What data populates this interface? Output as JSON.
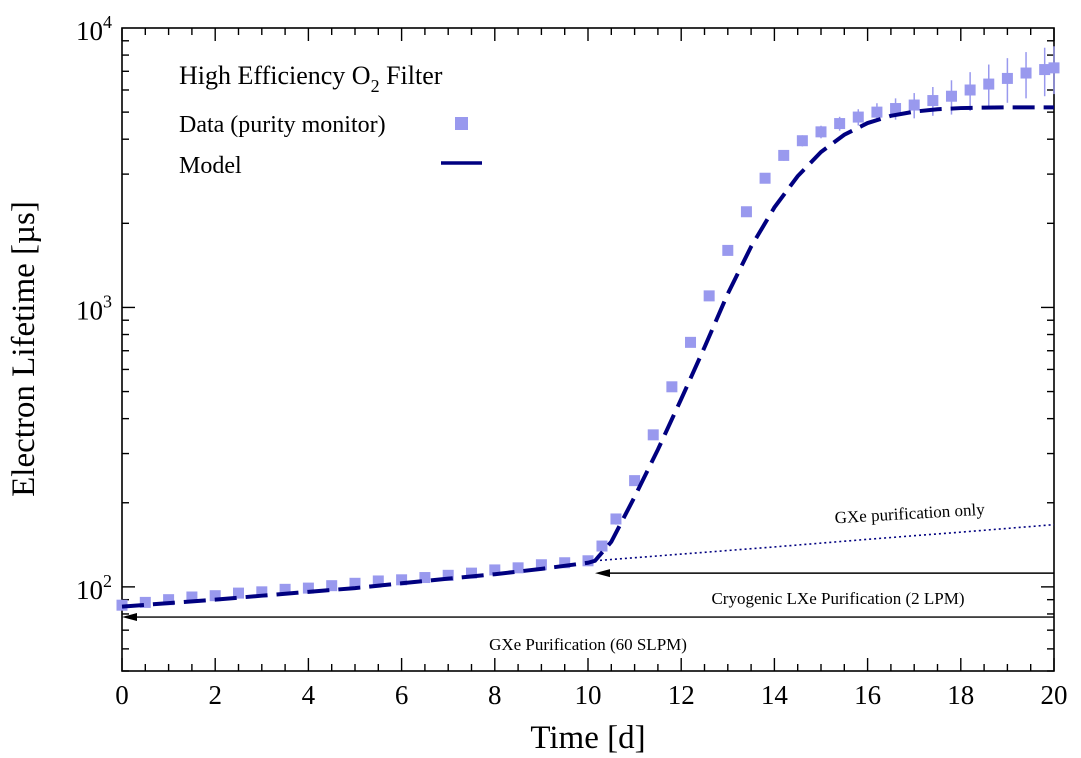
{
  "chart_data": {
    "type": "scatter",
    "title": "",
    "xlabel": "Time [d]",
    "ylabel": "Electron Lifetime [µs]",
    "xlim": [
      0,
      20
    ],
    "ylim": [
      50,
      10000
    ],
    "yscale": "log",
    "x_ticks": [
      0,
      2,
      4,
      6,
      8,
      10,
      12,
      14,
      16,
      18,
      20
    ],
    "x_tick_labels": [
      "0",
      "2",
      "4",
      "6",
      "8",
      "10",
      "12",
      "14",
      "16",
      "18",
      "20"
    ],
    "y_ticks": [
      100,
      1000,
      10000
    ],
    "y_tick_labels": [
      {
        "base": "10",
        "exp": "2"
      },
      {
        "base": "10",
        "exp": "3"
      },
      {
        "base": "10",
        "exp": "4"
      }
    ],
    "legend": {
      "placement": "top-left",
      "title_main": "High Efficiency O",
      "title_sub": "2",
      "title_tail": " Filter",
      "entries": [
        {
          "label": "Data (purity monitor)",
          "style": "square",
          "color": "#9999ee"
        },
        {
          "label": "Model",
          "style": "dashed-line",
          "color": "#000080"
        }
      ]
    },
    "series": [
      {
        "name": "Data (purity monitor)",
        "style": "square-markers-with-errorbars",
        "color": "#9999ee",
        "x": [
          0.0,
          0.5,
          1.0,
          1.5,
          2.0,
          2.5,
          3.0,
          3.5,
          4.0,
          4.5,
          5.0,
          5.5,
          6.0,
          6.5,
          7.0,
          7.5,
          8.0,
          8.5,
          9.0,
          9.5,
          10.0,
          10.3,
          10.6,
          11.0,
          11.4,
          11.8,
          12.2,
          12.6,
          13.0,
          13.4,
          13.8,
          14.2,
          14.6,
          15.0,
          15.4,
          15.8,
          16.2,
          16.6,
          17.0,
          17.4,
          17.8,
          18.2,
          18.6,
          19.0,
          19.4,
          19.8,
          20.0
        ],
        "y": [
          86,
          88,
          90,
          92,
          93,
          95,
          96,
          98,
          99,
          101,
          103,
          105,
          106,
          108,
          110,
          112,
          115,
          117,
          120,
          122,
          124,
          140,
          175,
          240,
          350,
          520,
          750,
          1100,
          1600,
          2200,
          2900,
          3500,
          3950,
          4250,
          4550,
          4800,
          5000,
          5150,
          5300,
          5500,
          5700,
          6000,
          6300,
          6600,
          6900,
          7100,
          7200
        ],
        "err": [
          3,
          3,
          3,
          3,
          3,
          3,
          3,
          3,
          3,
          3,
          3,
          3,
          3,
          3,
          3,
          3,
          4,
          4,
          4,
          4,
          4,
          6,
          8,
          10,
          14,
          20,
          30,
          45,
          60,
          90,
          120,
          150,
          180,
          220,
          260,
          320,
          380,
          450,
          550,
          650,
          800,
          950,
          1100,
          1200,
          1300,
          1400,
          1400
        ]
      },
      {
        "name": "Model",
        "style": "dashed",
        "color": "#000080",
        "x": [
          0,
          1,
          2,
          3,
          4,
          5,
          6,
          7,
          8,
          9,
          10,
          10.15,
          10.5,
          11,
          11.5,
          12,
          12.5,
          13,
          13.5,
          14,
          14.5,
          15,
          15.5,
          16,
          16.5,
          17,
          17.5,
          18,
          18.5,
          19,
          19.5,
          20
        ],
        "y": [
          85,
          87.5,
          90,
          93,
          96,
          99,
          103,
          107,
          111,
          116,
          122,
          124,
          145,
          210,
          310,
          470,
          720,
          1120,
          1650,
          2280,
          2950,
          3600,
          4150,
          4570,
          4850,
          5020,
          5120,
          5170,
          5190,
          5200,
          5200,
          5200
        ]
      },
      {
        "name": "GXe purification only",
        "style": "dotted",
        "color": "#000080",
        "x": [
          10.15,
          12,
          14,
          16,
          18,
          20
        ],
        "y": [
          124,
          131,
          139,
          148,
          157,
          167
        ]
      }
    ],
    "annotations": [
      {
        "text": "GXe purification only",
        "near": "dotted extrapolation, right side"
      },
      {
        "text": "Cryogenic LXe Purification (2 LPM)",
        "arrow_from_x": 20,
        "arrow_to_x": 10.15,
        "y": 112
      },
      {
        "text": "GXe Purification (60 SLPM)",
        "arrow_from_x": 20,
        "arrow_to_x": 0,
        "y": 78
      }
    ]
  }
}
